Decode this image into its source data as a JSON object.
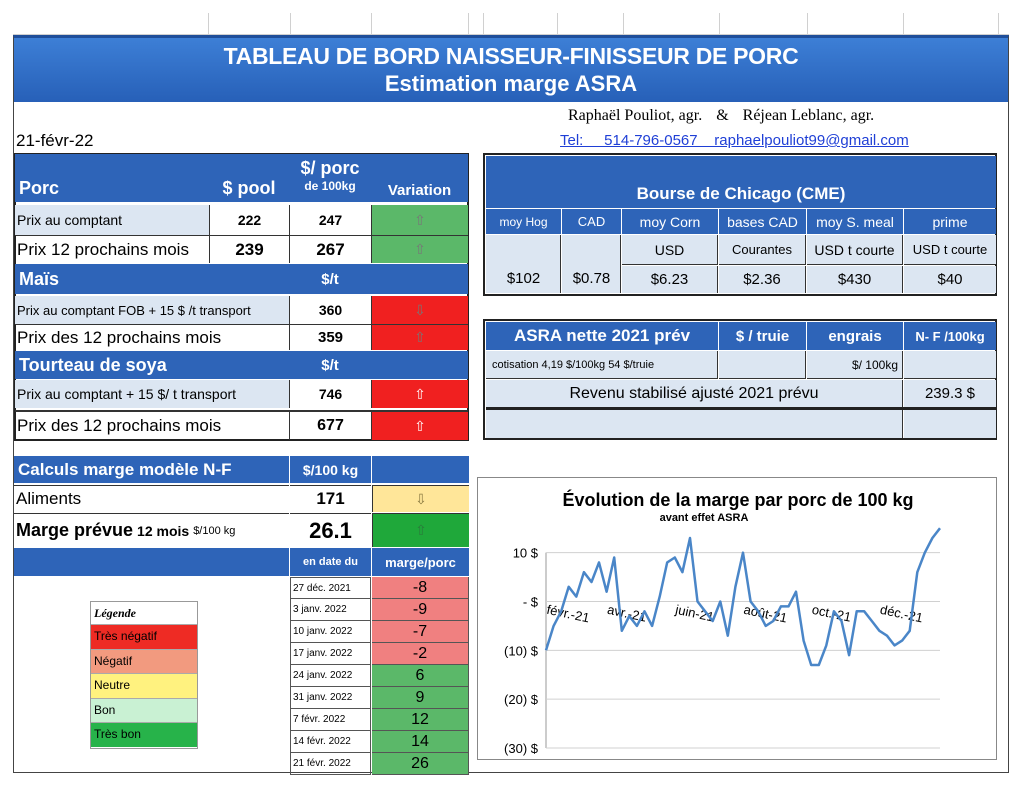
{
  "header": {
    "title": "TABLEAU  DE BORD NAISSEUR-FINISSEUR  DE PORC",
    "subtitle": "Estimation marge ASRA",
    "authors_left": "Raphaël Pouliot, agr.",
    "ampersand": "&",
    "authors_right": "Réjean Leblanc, agr.",
    "contact": "Tel:     514-796-0567    raphaelpouliot99@gmail.com",
    "date": "21-févr-22"
  },
  "porc": {
    "title": "Porc",
    "col_pool": "$ pool",
    "col_porc_top": "$/ porc",
    "col_porc_bottom": "de 100kg",
    "col_variation": "Variation",
    "row1_label": "Prix au comptant",
    "row1_pool": "222",
    "row1_porc": "247",
    "row2_label": "Prix 12 prochains mois",
    "row2_pool": "239",
    "row2_porc": "267"
  },
  "mais": {
    "title": "Maïs",
    "unit": "$/t",
    "row1_label": "Prix au comptant  FOB + 15 $ /t transport",
    "row1_val": "360",
    "row2_label": "Prix des 12 prochains mois",
    "row2_val": "359"
  },
  "soya": {
    "title": "Tourteau de soya",
    "unit": "$/t",
    "row1_label": "Prix au comptant  + 15 $/ t  transport",
    "row1_val": "746",
    "row2_label": "Prix des 12 prochains mois",
    "row2_val": "677"
  },
  "cme": {
    "title": "Bourse de Chicago (CME)",
    "h1": "moy Hog",
    "h2": "CAD",
    "h3": "moy Corn",
    "h4": "bases CAD",
    "h5": "moy S. meal",
    "h6": "prime",
    "s3": "USD",
    "s4": "Courantes",
    "s5": "USD t courte",
    "s6": "USD t courte",
    "v1": "$102",
    "v2": "$0.78",
    "v3": "$6.23",
    "v4": "$2.36",
    "v5": "$430",
    "v6": "$40"
  },
  "asra": {
    "title": "ASRA nette 2021 prév",
    "h2": "$ / truie",
    "h3": "engrais",
    "h4": "N- F /100kg",
    "cotisation": "cotisation 4,19 $/100kg  54 $/truie",
    "engrais_unit": "$/ 100kg",
    "revenu_label": "Revenu stabilisé ajusté 2021 prévu",
    "revenu_val": "239.3 $"
  },
  "marge": {
    "title": "Calculs marge  modèle N-F",
    "unit": "$/100 kg",
    "aliments_label": "Aliments",
    "aliments_val": "171",
    "prevue_label": "Marge prévue",
    "prevue_sub": "12 mois",
    "prevue_unit": "$/100 kg",
    "prevue_val": "26.1",
    "col_date": "en date du",
    "col_marge": "marge/porc",
    "rows": [
      {
        "date": "27 déc. 2021",
        "val": "-8",
        "color": "#f08080"
      },
      {
        "date": "3 janv. 2022",
        "val": "-9",
        "color": "#f08080"
      },
      {
        "date": "10 janv. 2022",
        "val": "-7",
        "color": "#f08080"
      },
      {
        "date": "17 janv. 2022",
        "val": "-2",
        "color": "#f08080"
      },
      {
        "date": "24 janv. 2022",
        "val": "6",
        "color": "#5bb869"
      },
      {
        "date": "31 janv. 2022",
        "val": "9",
        "color": "#5bb869"
      },
      {
        "date": "7 févr. 2022",
        "val": "12",
        "color": "#5bb869"
      },
      {
        "date": "14 févr. 2022",
        "val": "14",
        "color": "#5bb869"
      },
      {
        "date": "21 févr. 2022",
        "val": "26",
        "color": "#5bb869"
      }
    ]
  },
  "legend": {
    "title": "Légende",
    "items": [
      {
        "label": "Très négatif",
        "color": "#ee2b24"
      },
      {
        "label": "Négatif",
        "color": "#f29a7f"
      },
      {
        "label": "Neutre",
        "color": "#fff27f"
      },
      {
        "label": "Bon",
        "color": "#c9f1d3"
      },
      {
        "label": "Très bon",
        "color": "#27b34a"
      }
    ]
  },
  "chart_data": {
    "type": "line",
    "title": "Évolution de la marge par porc de 100 kg",
    "subtitle": "avant effet ASRA",
    "y_tick_labels": [
      "10 $",
      "- $",
      "(10) $",
      "(20) $",
      "(30) $"
    ],
    "y_ticks": [
      10,
      0,
      -10,
      -20,
      -30
    ],
    "ylim": [
      -30,
      13
    ],
    "x_tick_labels": [
      "févr.-21",
      "avr.-21",
      "juin-21",
      "août-21",
      "oct.-21",
      "déc.-21"
    ],
    "x_tick_positions": [
      0,
      8,
      17,
      26,
      35,
      44
    ],
    "series": [
      {
        "color": "#4a86c8",
        "values": [
          -10,
          -5,
          -2,
          3,
          1,
          6,
          4,
          8,
          2,
          9,
          -6,
          -3,
          -5,
          -2,
          -5,
          1,
          8,
          9,
          6,
          13,
          0,
          -2,
          -4,
          0,
          -7,
          3,
          10,
          0,
          -2,
          -5,
          -4,
          -1,
          -1,
          2,
          -8,
          -13,
          -13,
          -9,
          -2,
          -4,
          -11,
          -2,
          -2,
          -4,
          -6,
          -7,
          -9,
          -8,
          -6,
          6,
          10,
          13,
          15
        ],
        "line_width": 2.5
      }
    ],
    "grid": "horizontal"
  }
}
